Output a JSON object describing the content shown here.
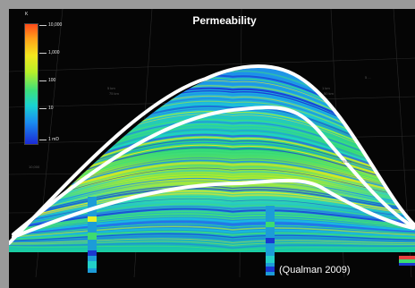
{
  "figure": {
    "title": "Permeability",
    "credit": "(Qualman 2009)"
  },
  "legend": {
    "unit_symbol": "K",
    "ticks": [
      "10,000",
      "1,000",
      "100",
      "10",
      "1 mD"
    ],
    "colors": [
      "#ff4a1a",
      "#ffa01a",
      "#f3e61e",
      "#b8f029",
      "#3ee07a",
      "#19d2d2",
      "#1a8cf0",
      "#1b2ad6"
    ]
  },
  "grid_labels": [
    "5 km",
    "75 km",
    "1 km",
    "50 km",
    "10,000",
    "5 ...",
    "25 km"
  ],
  "palette": {
    "frame": "#9a9a9a",
    "background": "#050505",
    "horizon_lines": "#ffffff"
  }
}
